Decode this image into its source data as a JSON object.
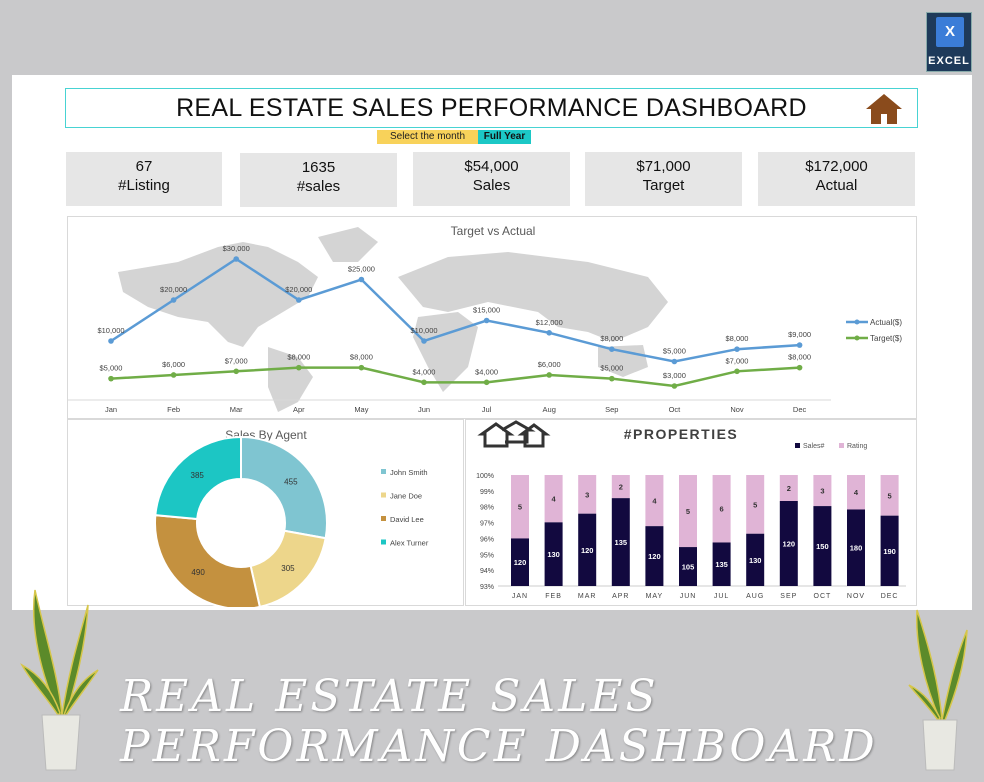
{
  "header": {
    "title": "REAL ESTATE SALES PERFORMANCE DASHBOARD",
    "select_label": "Select the month",
    "select_value": "Full Year",
    "home_icon": "home-icon"
  },
  "logo": {
    "label": "EXCEL",
    "icon": "excel-icon"
  },
  "kpis": [
    {
      "value": "67",
      "label": "#Listing"
    },
    {
      "value": "1635",
      "label": "#sales"
    },
    {
      "value": "$54,000",
      "label": "Sales"
    },
    {
      "value": "$71,000",
      "label": "Target"
    },
    {
      "value": "$172,000",
      "label": "Actual"
    }
  ],
  "footer": {
    "title_line1": "REAL ESTATE SALES",
    "title_line2": "PERFORMANCE DASHBOARD"
  },
  "colors": {
    "actual": "#5b9bd5",
    "target": "#70ad47",
    "sales": "#12093f",
    "rating": "#e0b4d6",
    "accent": "#1cc8c6",
    "select": "#f8d25a"
  },
  "chart_data": [
    {
      "type": "line",
      "title": "Target vs Actual",
      "categories": [
        "Jan",
        "Feb",
        "Mar",
        "Apr",
        "May",
        "Jun",
        "Jul",
        "Aug",
        "Sep",
        "Oct",
        "Nov",
        "Dec"
      ],
      "series": [
        {
          "name": "Actual($)",
          "values": [
            10000,
            20000,
            30000,
            20000,
            25000,
            10000,
            15000,
            12000,
            8000,
            5000,
            8000,
            9000
          ],
          "labels": [
            "$10,000",
            "$20,000",
            "$30,000",
            "$20,000",
            "$25,000",
            "$10,000",
            "$15,000",
            "$12,000",
            "$8,000",
            "$5,000",
            "$8,000",
            "$9,000"
          ]
        },
        {
          "name": "Target($)",
          "values": [
            5000,
            6000,
            7000,
            8000,
            8000,
            4000,
            4000,
            6000,
            5000,
            3000,
            7000,
            8000
          ],
          "labels": [
            "$5,000",
            "$6,000",
            "$7,000",
            "$8,000",
            "$8,000",
            "$4,000",
            "$4,000",
            "$6,000",
            "$5,000",
            "$3,000",
            "$7,000",
            "$8,000"
          ]
        }
      ],
      "legend": "right",
      "background": "world map"
    },
    {
      "type": "pie",
      "title": "Sales By Agent",
      "donut": true,
      "categories": [
        "John Smith",
        "Jane Doe",
        "David Lee",
        "Alex Turner"
      ],
      "values": [
        455,
        305,
        490,
        385
      ],
      "colors": [
        "#7fc5d1",
        "#edd68b",
        "#c4913f",
        "#1cc6c4"
      ],
      "legend": "right"
    },
    {
      "type": "bar",
      "stacked": "percent",
      "title": "#PROPERTIES",
      "categories": [
        "JAN",
        "FEB",
        "MAR",
        "APR",
        "MAY",
        "JUN",
        "JUL",
        "AUG",
        "SEP",
        "OCT",
        "NOV",
        "DEC"
      ],
      "series": [
        {
          "name": "Sales#",
          "values": [
            120,
            130,
            120,
            135,
            120,
            105,
            135,
            130,
            120,
            150,
            180,
            190
          ]
        },
        {
          "name": "Rating",
          "values": [
            5,
            4,
            3,
            2,
            4,
            5,
            6,
            5,
            2,
            3,
            4,
            5
          ]
        }
      ],
      "ylim": [
        0.93,
        1.0
      ],
      "yticks": [
        "93%",
        "94%",
        "95%",
        "96%",
        "97%",
        "98%",
        "99%",
        "100%"
      ],
      "legend": "top-right"
    }
  ]
}
